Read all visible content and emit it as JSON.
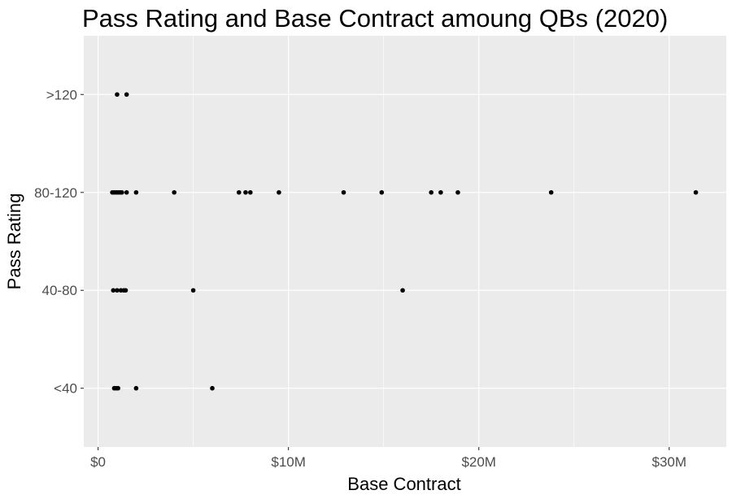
{
  "chart_data": {
    "type": "scatter",
    "title": "Pass Rating and Base Contract amoung QBs (2020)",
    "xlabel": "Base Contract",
    "ylabel": "Pass Rating",
    "xlim": [
      -750000,
      33000000
    ],
    "x_ticks": [
      {
        "value": 0,
        "label": "$0"
      },
      {
        "value": 10000000,
        "label": "$10M"
      },
      {
        "value": 20000000,
        "label": "$20M"
      },
      {
        "value": 30000000,
        "label": "$30M"
      }
    ],
    "x_minor_ticks": [
      5000000,
      15000000,
      25000000
    ],
    "categories": [
      "<40",
      "40-80",
      "80-120",
      ">120"
    ],
    "grid": true,
    "legend": "none",
    "colors": {
      "panel": "#ebebeb",
      "grid": "#ffffff",
      "point": "#000000"
    },
    "points": [
      {
        "x": 1000000,
        "y": ">120"
      },
      {
        "x": 1500000,
        "y": ">120"
      },
      {
        "x": 750000,
        "y": "80-120"
      },
      {
        "x": 850000,
        "y": "80-120"
      },
      {
        "x": 950000,
        "y": "80-120"
      },
      {
        "x": 1050000,
        "y": "80-120"
      },
      {
        "x": 1150000,
        "y": "80-120"
      },
      {
        "x": 1250000,
        "y": "80-120"
      },
      {
        "x": 1500000,
        "y": "80-120"
      },
      {
        "x": 2000000,
        "y": "80-120"
      },
      {
        "x": 4000000,
        "y": "80-120"
      },
      {
        "x": 7400000,
        "y": "80-120"
      },
      {
        "x": 7750000,
        "y": "80-120"
      },
      {
        "x": 8000000,
        "y": "80-120"
      },
      {
        "x": 9500000,
        "y": "80-120"
      },
      {
        "x": 12900000,
        "y": "80-120"
      },
      {
        "x": 14900000,
        "y": "80-120"
      },
      {
        "x": 17500000,
        "y": "80-120"
      },
      {
        "x": 18000000,
        "y": "80-120"
      },
      {
        "x": 18900000,
        "y": "80-120"
      },
      {
        "x": 23800000,
        "y": "80-120"
      },
      {
        "x": 31400000,
        "y": "80-120"
      },
      {
        "x": 800000,
        "y": "40-80"
      },
      {
        "x": 1000000,
        "y": "40-80"
      },
      {
        "x": 1200000,
        "y": "40-80"
      },
      {
        "x": 1350000,
        "y": "40-80"
      },
      {
        "x": 1450000,
        "y": "40-80"
      },
      {
        "x": 5000000,
        "y": "40-80"
      },
      {
        "x": 16000000,
        "y": "40-80"
      },
      {
        "x": 850000,
        "y": "<40"
      },
      {
        "x": 950000,
        "y": "<40"
      },
      {
        "x": 1050000,
        "y": "<40"
      },
      {
        "x": 2000000,
        "y": "<40"
      },
      {
        "x": 6000000,
        "y": "<40"
      }
    ]
  }
}
